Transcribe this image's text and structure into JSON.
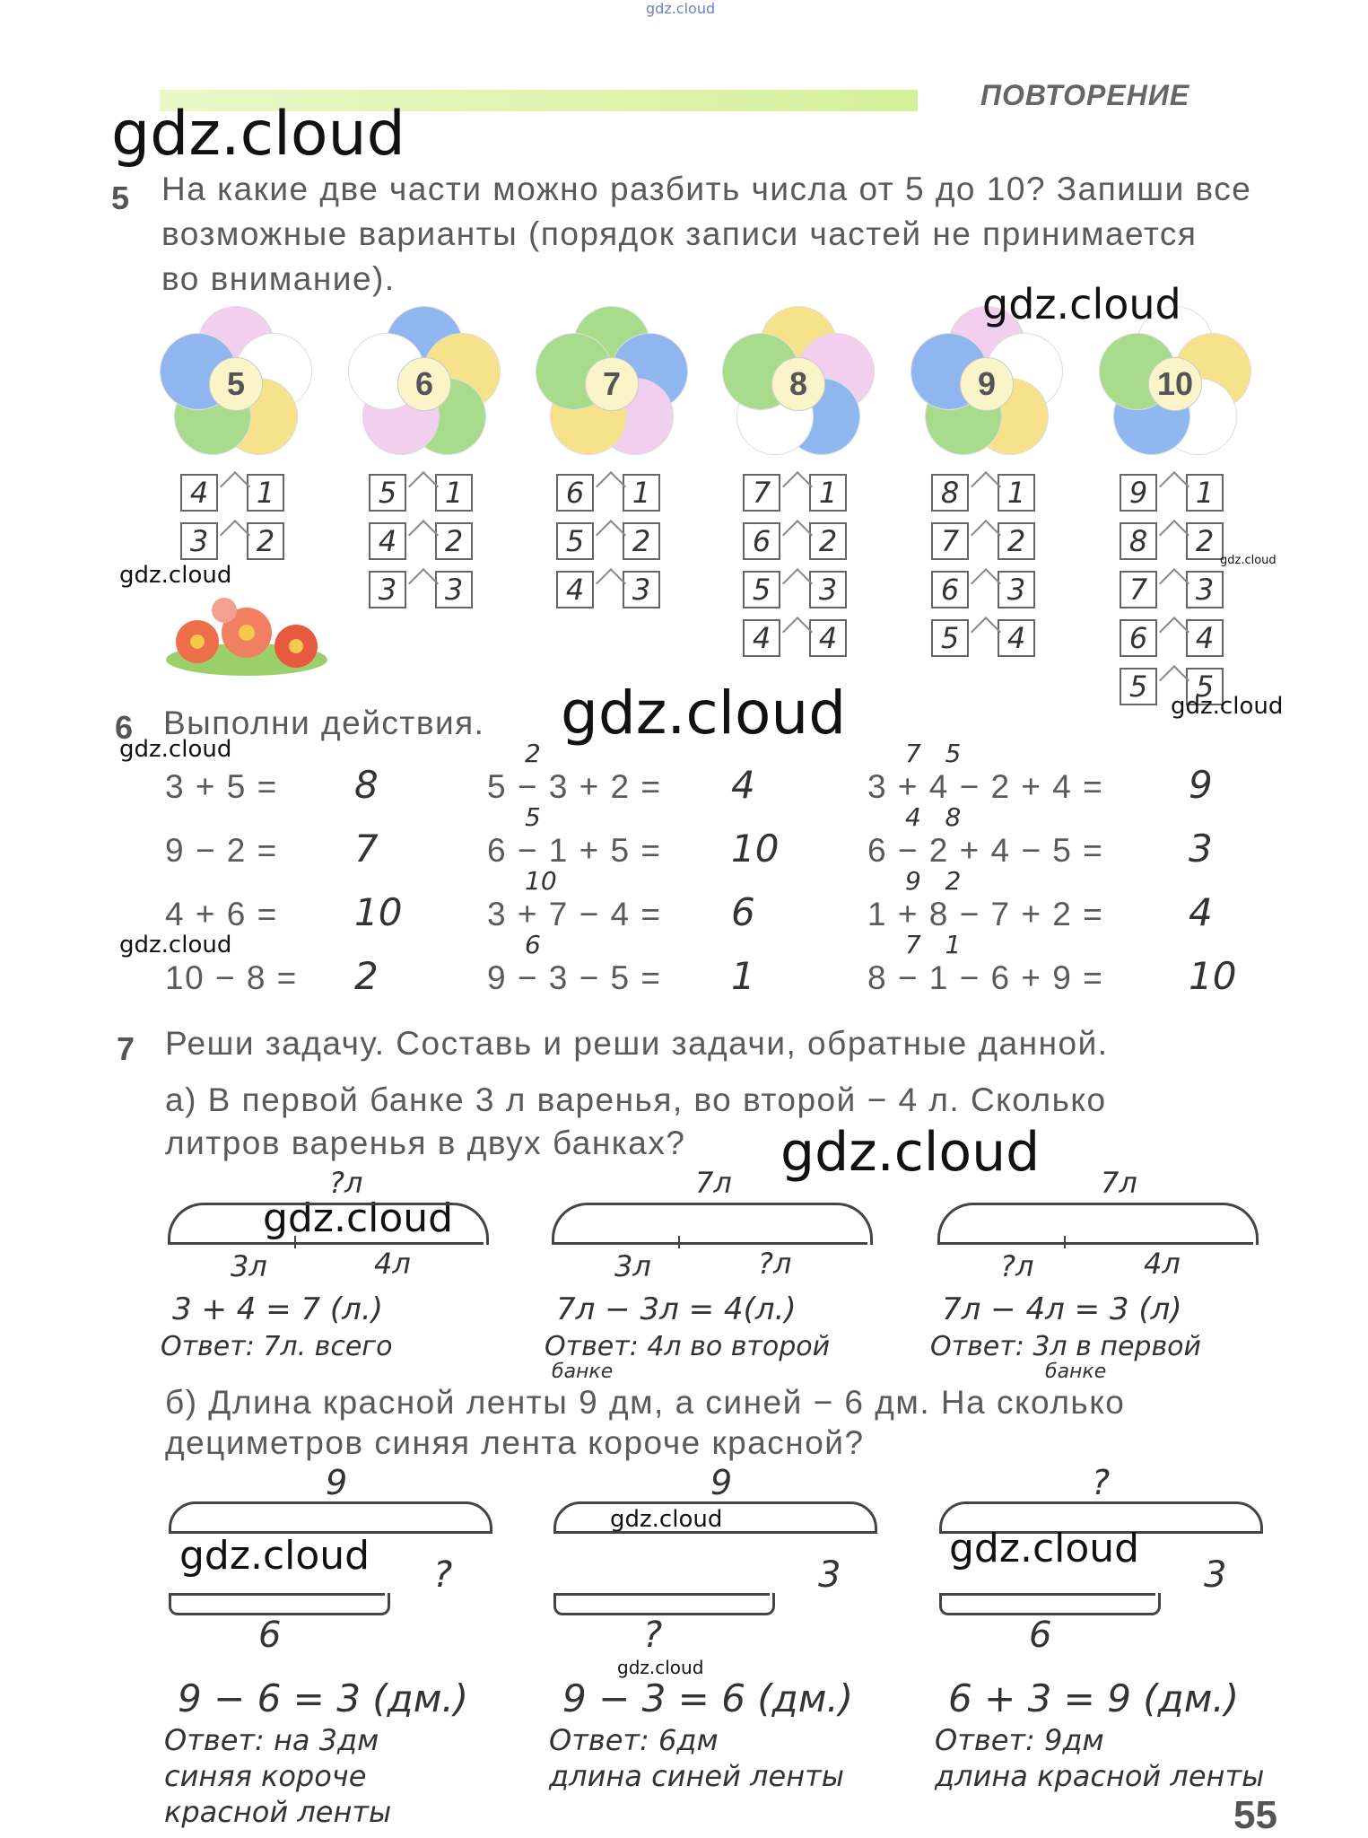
{
  "watermarks": {
    "top": "gdz.cloud",
    "text": "gdz.cloud"
  },
  "header": {
    "title": "ПОВТОРЕНИЕ"
  },
  "task5": {
    "number": "5",
    "lines": [
      "На какие две части можно разбить числа от 5 до 10? Запиши все",
      "возможные варианты (порядок записи частей не принимается",
      "во внимание)."
    ],
    "flowers": [
      {
        "value": "5",
        "petals": [
          "#f2cfee",
          "#ffffff",
          "#f7e28c",
          "#a8dc8c",
          "#8fb6ee"
        ],
        "pairs": [
          [
            "4",
            "1"
          ],
          [
            "3",
            "2"
          ]
        ]
      },
      {
        "value": "6",
        "petals": [
          "#8fb6ee",
          "#f7e28c",
          "#a8dc8c",
          "#f2cfee",
          "#ffffff"
        ],
        "pairs": [
          [
            "5",
            "1"
          ],
          [
            "4",
            "2"
          ],
          [
            "3",
            "3"
          ]
        ]
      },
      {
        "value": "7",
        "petals": [
          "#a8dc8c",
          "#8fb6ee",
          "#f2cfee",
          "#f7e28c",
          "#a8dc8c"
        ],
        "pairs": [
          [
            "6",
            "1"
          ],
          [
            "5",
            "2"
          ],
          [
            "4",
            "3"
          ]
        ]
      },
      {
        "value": "8",
        "petals": [
          "#f7e28c",
          "#f2cfee",
          "#8fb6ee",
          "#ffffff",
          "#a8dc8c"
        ],
        "pairs": [
          [
            "7",
            "1"
          ],
          [
            "6",
            "2"
          ],
          [
            "5",
            "3"
          ],
          [
            "4",
            "4"
          ]
        ]
      },
      {
        "value": "9",
        "petals": [
          "#f2cfee",
          "#ffffff",
          "#f7e28c",
          "#a8dc8c",
          "#8fb6ee"
        ],
        "pairs": [
          [
            "8",
            "1"
          ],
          [
            "7",
            "2"
          ],
          [
            "6",
            "3"
          ],
          [
            "5",
            "4"
          ]
        ]
      },
      {
        "value": "10",
        "petals": [
          "#ffffff",
          "#f7e28c",
          "#ffffff",
          "#8fb6ee",
          "#a8dc8c"
        ],
        "pairs": [
          [
            "9",
            "1"
          ],
          [
            "8",
            "2"
          ],
          [
            "7",
            "3"
          ],
          [
            "6",
            "4"
          ],
          [
            "5",
            "5"
          ]
        ]
      }
    ]
  },
  "task6": {
    "number": "6",
    "title": "Выполни действия.",
    "columns": [
      [
        {
          "expr": "3 + 5 =",
          "answer": "8",
          "notes": ""
        },
        {
          "expr": "9 − 2 =",
          "answer": "7",
          "notes": ""
        },
        {
          "expr": "4 + 6 =",
          "answer": "10",
          "notes": ""
        },
        {
          "expr": "10 − 8 =",
          "answer": "2",
          "notes": ""
        }
      ],
      [
        {
          "expr": "5 − 3 + 2 =",
          "answer": "4",
          "notes": "2"
        },
        {
          "expr": "6 − 1 + 5 =",
          "answer": "10",
          "notes": "5"
        },
        {
          "expr": "3 + 7 − 4 =",
          "answer": "6",
          "notes": "10"
        },
        {
          "expr": "9 − 3 − 5 =",
          "answer": "1",
          "notes": "6"
        }
      ],
      [
        {
          "expr": "3 + 4 − 2 + 4 =",
          "answer": "9",
          "notes": "7   5"
        },
        {
          "expr": "6 − 2 + 4 − 5 =",
          "answer": "3",
          "notes": "4   8"
        },
        {
          "expr": "1 + 8 − 7 + 2 =",
          "answer": "4",
          "notes": "9   2"
        },
        {
          "expr": "8 − 1 − 6 + 9 =",
          "answer": "10",
          "notes": "7   1"
        }
      ]
    ]
  },
  "task7": {
    "number": "7",
    "title": "Реши задачу. Составь и реши задачи, обратные данной.",
    "a_lines": [
      "а) В первой банке 3 л варенья, во второй − 4 л. Сколько",
      "литров варенья в двух банках?"
    ],
    "a_diagrams": [
      {
        "top": "?л",
        "left": "3л",
        "right": "4л",
        "solution": "3 + 4 = 7 (л.)",
        "answer": "Ответ: 7л. всего",
        "answer2": ""
      },
      {
        "top": "7л",
        "left": "3л",
        "right": "?л",
        "solution": "7л − 3л = 4(л.)",
        "answer": "Ответ: 4л во второй",
        "answer2": "банке"
      },
      {
        "top": "7л",
        "left": "?л",
        "right": "4л",
        "solution": "7л − 4л = 3 (л)",
        "answer": "Ответ: 3л в первой",
        "answer2": "банке"
      }
    ],
    "b_lines": [
      "б) Длина красной ленты 9 дм, а синей − 6 дм. На сколько",
      "дециметров синяя лента короче красной?"
    ],
    "b_diagrams": [
      {
        "top": "9",
        "side": "?",
        "bottom": "6",
        "solution": "9 − 6 = 3 (дм.)",
        "answer": [
          "Ответ: на 3дм",
          "синяя короче",
          "красной ленты"
        ]
      },
      {
        "top": "9",
        "side": "3",
        "bottom": "?",
        "solution": "9 − 3 = 6 (дм.)",
        "answer": [
          "Ответ:   6дм",
          "длина синей ленты"
        ]
      },
      {
        "top": "?",
        "side": "3",
        "bottom": "6",
        "solution": "6 + 3 = 9 (дм.)",
        "answer": [
          "Ответ: 9дм",
          "длина красной ленты"
        ]
      }
    ]
  },
  "page_number": "55"
}
